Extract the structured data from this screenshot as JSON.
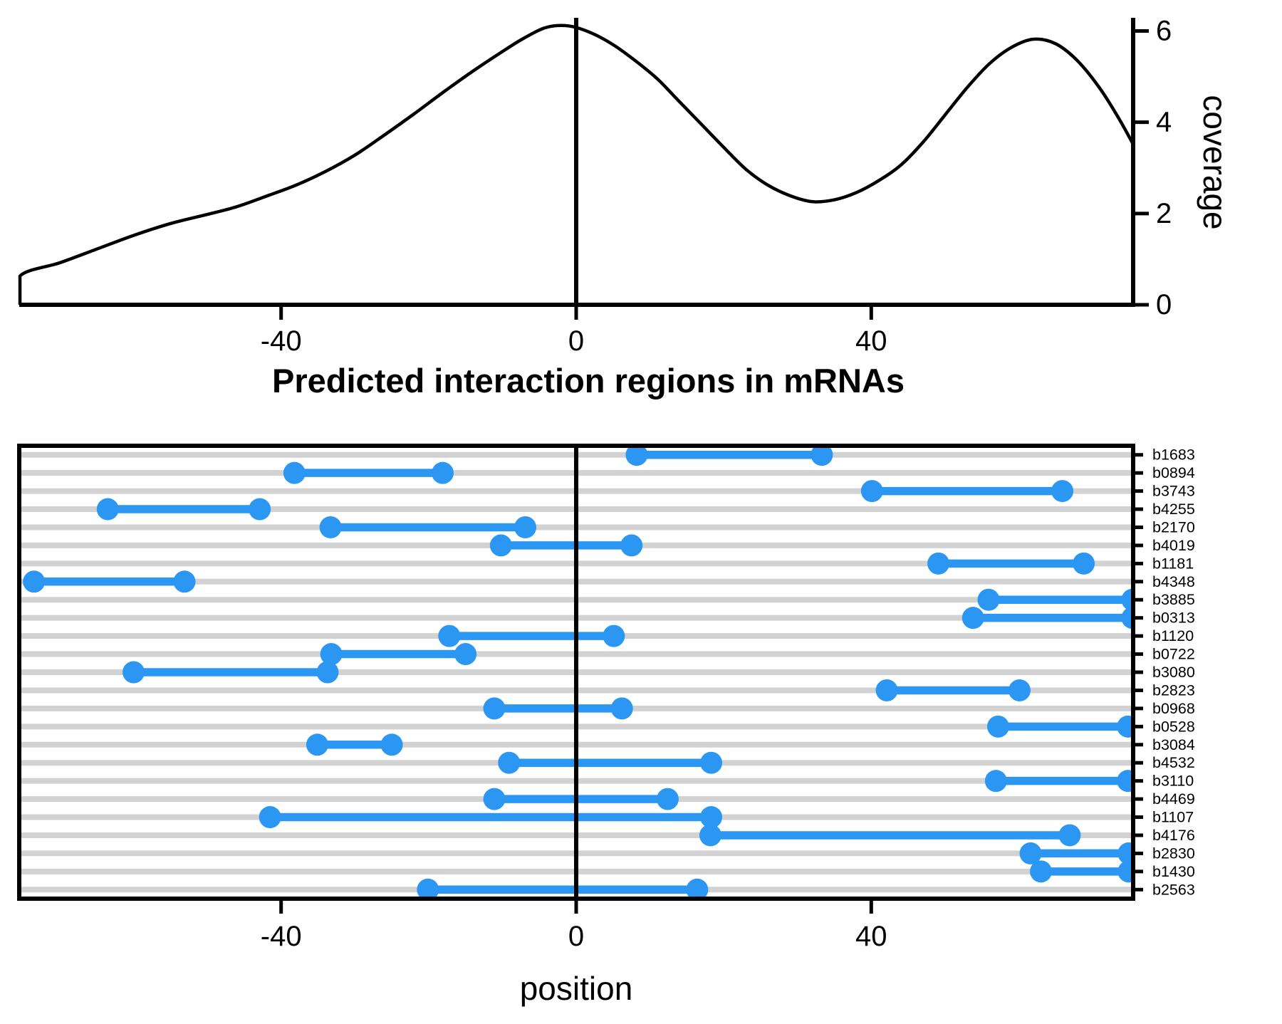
{
  "figure": {
    "title": "Predicted interaction regions in mRNAs",
    "colors": {
      "segment_blue": "#2b97f3",
      "gridline_gray": "#d2d2d2",
      "axis_black": "#000000",
      "background": "#ffffff"
    }
  },
  "chart_data": [
    {
      "type": "line",
      "name": "coverage-density",
      "title": "",
      "xlabel": "",
      "ylabel": "coverage",
      "xlim": [
        -75.5,
        75.5
      ],
      "ylim": [
        0,
        6.29
      ],
      "x_ticks": [
        "-40",
        "0",
        "40"
      ],
      "x_tick_values": [
        -40,
        0,
        40
      ],
      "y_ticks": [
        "0",
        "2",
        "4",
        "6"
      ],
      "y_tick_values": [
        0,
        2,
        4,
        6
      ],
      "zero_vline": 0,
      "grid": false,
      "points": [
        [
          -75.4,
          0.0
        ],
        [
          -75.4,
          0.63
        ],
        [
          -70,
          0.92
        ],
        [
          -65,
          1.22
        ],
        [
          -60,
          1.52
        ],
        [
          -55,
          1.78
        ],
        [
          -50,
          1.98
        ],
        [
          -46,
          2.15
        ],
        [
          -42,
          2.38
        ],
        [
          -38,
          2.62
        ],
        [
          -34,
          2.92
        ],
        [
          -30,
          3.28
        ],
        [
          -26,
          3.72
        ],
        [
          -22,
          4.18
        ],
        [
          -18,
          4.66
        ],
        [
          -14,
          5.12
        ],
        [
          -10,
          5.55
        ],
        [
          -7,
          5.85
        ],
        [
          -4,
          6.08
        ],
        [
          -1,
          6.11
        ],
        [
          2,
          5.96
        ],
        [
          5,
          5.7
        ],
        [
          8,
          5.35
        ],
        [
          11,
          4.95
        ],
        [
          14,
          4.45
        ],
        [
          17,
          3.95
        ],
        [
          20,
          3.45
        ],
        [
          23,
          2.97
        ],
        [
          26,
          2.62
        ],
        [
          29,
          2.39
        ],
        [
          32,
          2.26
        ],
        [
          35,
          2.3
        ],
        [
          38,
          2.46
        ],
        [
          41,
          2.72
        ],
        [
          44,
          3.06
        ],
        [
          47,
          3.56
        ],
        [
          50,
          4.16
        ],
        [
          53,
          4.76
        ],
        [
          56,
          5.28
        ],
        [
          59,
          5.64
        ],
        [
          62,
          5.82
        ],
        [
          65,
          5.72
        ],
        [
          68,
          5.34
        ],
        [
          71,
          4.74
        ],
        [
          73.5,
          4.1
        ],
        [
          75.5,
          3.52
        ]
      ]
    },
    {
      "type": "dumbbell-segments",
      "name": "interaction-regions",
      "title": "Predicted interaction regions in mRNAs",
      "xlabel": "position",
      "ylabel": "",
      "xlim": [
        -75.5,
        75.5
      ],
      "x_ticks": [
        "-40",
        "0",
        "40"
      ],
      "x_tick_values": [
        -40,
        0,
        40
      ],
      "zero_vline": 0,
      "grid": true,
      "genes": [
        {
          "label": "b1683",
          "start": 8.2,
          "end": 33.3
        },
        {
          "label": "b0894",
          "start": -38.2,
          "end": -18.1
        },
        {
          "label": "b3743",
          "start": 40.1,
          "end": 65.9
        },
        {
          "label": "b4255",
          "start": -63.5,
          "end": -42.9
        },
        {
          "label": "b2170",
          "start": -33.3,
          "end": -6.9
        },
        {
          "label": "b4019",
          "start": -10.2,
          "end": 7.5
        },
        {
          "label": "b1181",
          "start": 49.1,
          "end": 68.8
        },
        {
          "label": "b4348",
          "start": -73.5,
          "end": -53.1
        },
        {
          "label": "b3885",
          "start": 55.9,
          "end": 75.4
        },
        {
          "label": "b0313",
          "start": 53.8,
          "end": 75.4
        },
        {
          "label": "b1120",
          "start": -17.2,
          "end": 5.1
        },
        {
          "label": "b0722",
          "start": -33.2,
          "end": -15.0
        },
        {
          "label": "b3080",
          "start": -60.0,
          "end": -33.7
        },
        {
          "label": "b2823",
          "start": 42.1,
          "end": 60.1
        },
        {
          "label": "b0968",
          "start": -11.1,
          "end": 6.2
        },
        {
          "label": "b0528",
          "start": 57.2,
          "end": 74.8
        },
        {
          "label": "b3084",
          "start": -35.1,
          "end": -25.0
        },
        {
          "label": "b4532",
          "start": -9.1,
          "end": 18.3
        },
        {
          "label": "b3110",
          "start": 56.9,
          "end": 74.8
        },
        {
          "label": "b4469",
          "start": -11.1,
          "end": 12.4
        },
        {
          "label": "b1107",
          "start": -41.5,
          "end": 18.3
        },
        {
          "label": "b4176",
          "start": 18.2,
          "end": 66.9
        },
        {
          "label": "b2830",
          "start": 61.6,
          "end": 74.9
        },
        {
          "label": "b1430",
          "start": 63.0,
          "end": 74.9
        },
        {
          "label": "b2563",
          "start": -20.1,
          "end": 16.4
        }
      ]
    }
  ]
}
